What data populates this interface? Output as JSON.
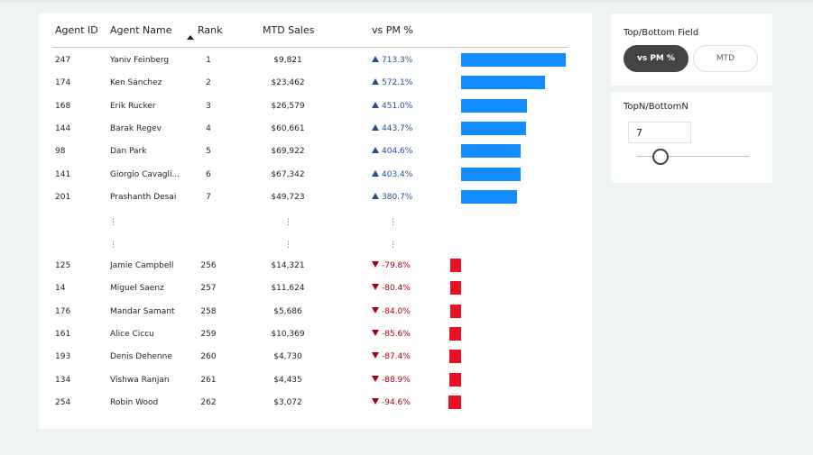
{
  "table": {
    "headers": {
      "agent_id": "Agent ID",
      "agent_name": "Agent Name",
      "rank": "Rank",
      "mtd_sales": "MTD Sales",
      "vs_pm": "vs PM %"
    },
    "top_rows": [
      {
        "id": "247",
        "name": "Yaniv Feinberg",
        "rank": "1",
        "sales": "$9,821",
        "pm": "713.3%",
        "pm_value": 713.3
      },
      {
        "id": "174",
        "name": "Ken Sánchez",
        "rank": "2",
        "sales": "$23,462",
        "pm": "572.1%",
        "pm_value": 572.1
      },
      {
        "id": "168",
        "name": "Erik Rucker",
        "rank": "3",
        "sales": "$26,579",
        "pm": "451.0%",
        "pm_value": 451.0
      },
      {
        "id": "144",
        "name": "Barak Regev",
        "rank": "4",
        "sales": "$60,661",
        "pm": "443.7%",
        "pm_value": 443.7
      },
      {
        "id": "98",
        "name": "Dan Park",
        "rank": "5",
        "sales": "$69,922",
        "pm": "404.6%",
        "pm_value": 404.6
      },
      {
        "id": "141",
        "name": "Giorgio Cavagli...",
        "rank": "6",
        "sales": "$67,342",
        "pm": "403.4%",
        "pm_value": 403.4
      },
      {
        "id": "201",
        "name": "Prashanth Desai",
        "rank": "7",
        "sales": "$49,723",
        "pm": "380.7%",
        "pm_value": 380.7
      }
    ],
    "separator_glyph": "⋮",
    "bottom_rows": [
      {
        "id": "125",
        "name": "Jamie Campbell",
        "rank": "256",
        "sales": "$14,321",
        "pm": "-79.8%",
        "pm_value": -79.8
      },
      {
        "id": "14",
        "name": "Miguel Saenz",
        "rank": "257",
        "sales": "$11,624",
        "pm": "-80.4%",
        "pm_value": -80.4
      },
      {
        "id": "176",
        "name": "Mandar Samant",
        "rank": "258",
        "sales": "$5,686",
        "pm": "-84.0%",
        "pm_value": -84.0
      },
      {
        "id": "161",
        "name": "Alice Ciccu",
        "rank": "259",
        "sales": "$10,369",
        "pm": "-85.6%",
        "pm_value": -85.6
      },
      {
        "id": "193",
        "name": "Denis Dehenne",
        "rank": "260",
        "sales": "$4,730",
        "pm": "-87.4%",
        "pm_value": -87.4
      },
      {
        "id": "134",
        "name": "Vishwa Ranjan",
        "rank": "261",
        "sales": "$4,435",
        "pm": "-88.9%",
        "pm_value": -88.9
      },
      {
        "id": "254",
        "name": "Robin Wood",
        "rank": "262",
        "sales": "$3,072",
        "pm": "-94.6%",
        "pm_value": -94.6
      }
    ],
    "colors": {
      "positive_bar": "#118dff",
      "negative_bar": "#e81123",
      "positive_text": "#1f4e9c",
      "negative_text": "#a8000d"
    }
  },
  "field_slicer": {
    "title": "Top/Bottom Field",
    "options": [
      "vs PM %",
      "MTD"
    ],
    "selected": "vs PM %"
  },
  "topn": {
    "title": "TopN/BottomN",
    "value": "7"
  }
}
